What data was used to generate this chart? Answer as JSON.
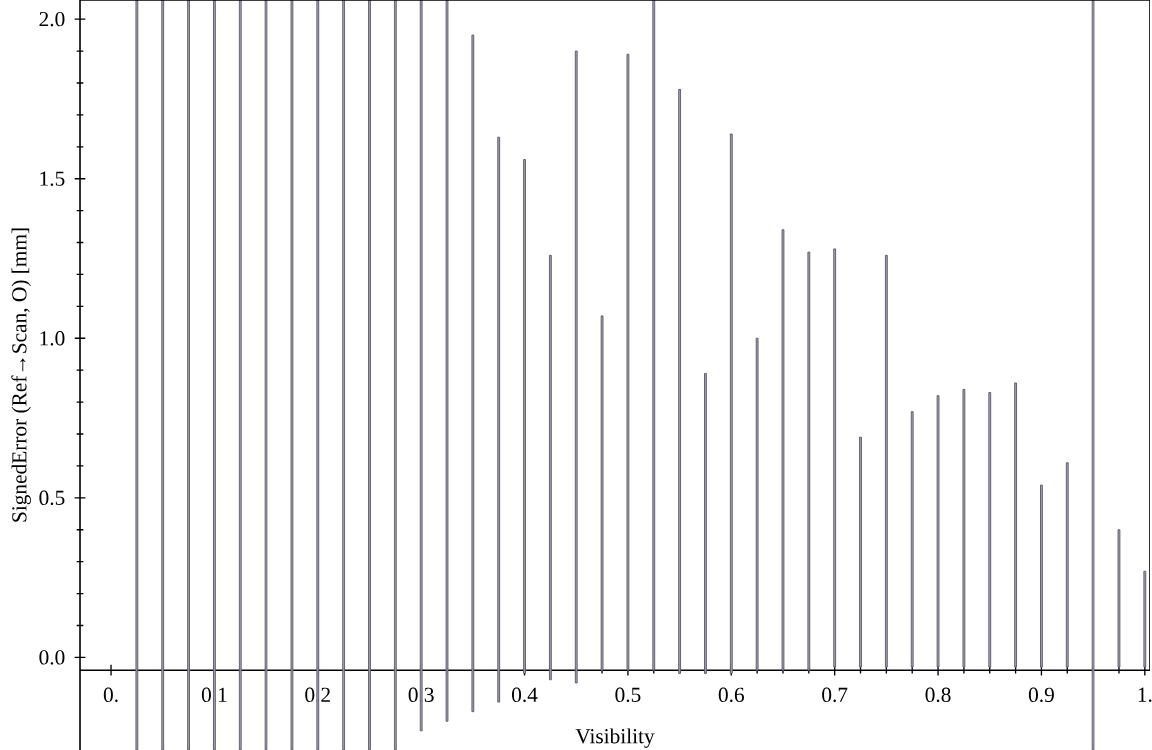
{
  "chart_data": {
    "type": "bar",
    "xlabel": "Visibility",
    "ylabel": "SignedError (Ref→Scan, O) [mm]",
    "x": [
      0.025,
      0.05,
      0.075,
      0.1,
      0.125,
      0.15,
      0.175,
      0.2,
      0.225,
      0.25,
      0.275,
      0.3,
      0.325,
      0.35,
      0.375,
      0.4,
      0.425,
      0.45,
      0.475,
      0.5,
      0.525,
      0.55,
      0.575,
      0.6,
      0.625,
      0.65,
      0.675,
      0.7,
      0.725,
      0.75,
      0.775,
      0.8,
      0.825,
      0.85,
      0.875,
      0.9,
      0.925,
      0.95,
      0.975,
      1.0
    ],
    "base": [
      -0.29,
      -0.29,
      -0.29,
      -0.29,
      -0.29,
      -0.29,
      -0.29,
      -0.29,
      -0.29,
      -0.29,
      -0.29,
      -0.23,
      -0.2,
      -0.17,
      -0.14,
      -0.05,
      -0.07,
      -0.08,
      -0.04,
      -0.04,
      -0.04,
      -0.05,
      -0.05,
      -0.05,
      -0.04,
      -0.04,
      -0.04,
      -0.03,
      -0.03,
      -0.03,
      -0.03,
      -0.03,
      -0.03,
      -0.03,
      -0.03,
      -0.03,
      -0.03,
      -0.29,
      -0.03,
      -0.03
    ],
    "values": [
      2.35,
      2.35,
      2.35,
      2.35,
      2.35,
      2.35,
      2.35,
      2.35,
      2.35,
      2.35,
      2.35,
      2.29,
      2.26,
      2.12,
      1.77,
      1.61,
      1.33,
      1.98,
      1.11,
      1.93,
      2.1,
      1.83,
      0.94,
      1.69,
      1.04,
      1.38,
      1.31,
      1.31,
      0.72,
      1.29,
      0.8,
      0.85,
      0.87,
      0.86,
      0.89,
      0.57,
      0.64,
      2.35,
      0.43,
      0.3
    ],
    "color": "#5a5a6e",
    "xlim": [
      -0.03,
      1.005
    ],
    "ylim": [
      -0.29,
      2.06
    ],
    "xticks": [
      {
        "value": 0,
        "label": "0."
      },
      0.1,
      0.2,
      0.3,
      0.4,
      0.5,
      0.6,
      0.7,
      0.8,
      0.9,
      {
        "value": 1,
        "label": "1."
      }
    ],
    "yticks": [
      {
        "value": 0,
        "label": "0.0"
      },
      0.5,
      {
        "value": 1,
        "label": "1.0"
      },
      1.5,
      {
        "value": 2,
        "label": "2.0"
      }
    ],
    "grid": false
  }
}
